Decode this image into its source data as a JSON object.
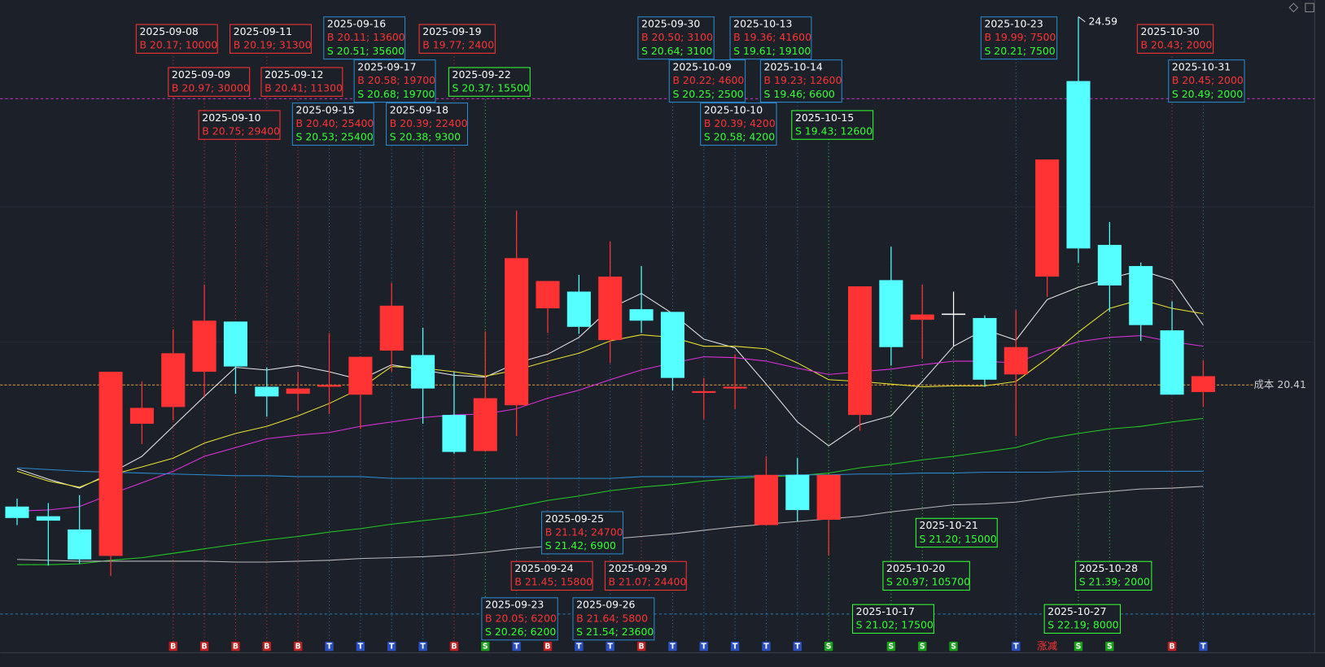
{
  "chart_data": {
    "type": "candlestick",
    "ylim": [
      17.64,
      24.78
    ],
    "candles": [
      {
        "open": 19.03,
        "high": 19.12,
        "low": 18.82,
        "close": 18.9
      },
      {
        "open": 18.92,
        "high": 19.07,
        "low": 18.36,
        "close": 18.87
      },
      {
        "open": 18.77,
        "high": 19.16,
        "low": 18.38,
        "close": 18.43
      },
      {
        "open": 18.47,
        "high": 20.56,
        "low": 18.24,
        "close": 20.56
      },
      {
        "open": 19.97,
        "high": 20.45,
        "low": 19.74,
        "close": 20.15
      },
      {
        "open": 20.16,
        "high": 21.04,
        "low": 20.01,
        "close": 20.77
      },
      {
        "open": 20.56,
        "high": 21.55,
        "low": 20.28,
        "close": 21.14
      },
      {
        "open": 21.13,
        "high": 21.13,
        "low": 20.31,
        "close": 20.62
      },
      {
        "open": 20.39,
        "high": 20.61,
        "low": 20.05,
        "close": 20.28
      },
      {
        "open": 20.31,
        "high": 20.56,
        "low": 20.12,
        "close": 20.37
      },
      {
        "open": 20.39,
        "high": 21.0,
        "low": 20.08,
        "close": 20.41
      },
      {
        "open": 20.3,
        "high": 20.73,
        "low": 19.91,
        "close": 20.73
      },
      {
        "open": 20.8,
        "high": 21.57,
        "low": 20.56,
        "close": 21.31
      },
      {
        "open": 20.75,
        "high": 21.06,
        "low": 19.97,
        "close": 20.37
      },
      {
        "open": 20.07,
        "high": 20.56,
        "low": 19.63,
        "close": 19.65
      },
      {
        "open": 19.66,
        "high": 21.02,
        "low": 19.66,
        "close": 20.26
      },
      {
        "open": 20.18,
        "high": 22.39,
        "low": 19.83,
        "close": 21.85
      },
      {
        "open": 21.28,
        "high": 21.59,
        "low": 21.0,
        "close": 21.59
      },
      {
        "open": 21.47,
        "high": 21.66,
        "low": 20.99,
        "close": 21.07
      },
      {
        "open": 20.92,
        "high": 22.04,
        "low": 20.66,
        "close": 21.64
      },
      {
        "open": 21.27,
        "high": 21.76,
        "low": 21.0,
        "close": 21.14
      },
      {
        "open": 21.24,
        "high": 21.24,
        "low": 20.35,
        "close": 20.49
      },
      {
        "open": 20.32,
        "high": 20.49,
        "low": 20.02,
        "close": 20.34
      },
      {
        "open": 20.37,
        "high": 20.76,
        "low": 20.14,
        "close": 20.39
      },
      {
        "open": 18.82,
        "high": 19.6,
        "low": 18.82,
        "close": 19.39
      },
      {
        "open": 19.39,
        "high": 19.58,
        "low": 18.86,
        "close": 18.99
      },
      {
        "open": 18.88,
        "high": 19.39,
        "low": 18.48,
        "close": 19.39
      },
      {
        "open": 20.07,
        "high": 21.53,
        "low": 19.89,
        "close": 21.53
      },
      {
        "open": 21.6,
        "high": 21.98,
        "low": 20.63,
        "close": 20.84
      },
      {
        "open": 21.15,
        "high": 21.55,
        "low": 20.71,
        "close": 21.21
      },
      {
        "open": 21.22,
        "high": 21.47,
        "low": 20.85,
        "close": 21.22
      },
      {
        "open": 21.17,
        "high": 21.2,
        "low": 20.39,
        "close": 20.47
      },
      {
        "open": 20.53,
        "high": 21.26,
        "low": 19.83,
        "close": 20.84
      },
      {
        "open": 21.64,
        "high": 22.97,
        "low": 21.41,
        "close": 22.97
      },
      {
        "open": 23.86,
        "high": 24.59,
        "low": 21.8,
        "close": 21.96
      },
      {
        "open": 22.0,
        "high": 22.26,
        "low": 21.24,
        "close": 21.54
      },
      {
        "open": 21.76,
        "high": 21.8,
        "low": 20.91,
        "close": 21.09
      },
      {
        "open": 21.03,
        "high": 21.36,
        "low": 20.3,
        "close": 20.3
      },
      {
        "open": 20.33,
        "high": 20.69,
        "low": 20.16,
        "close": 20.51
      }
    ],
    "up_color": "#ff3333",
    "down_color": "#55ffff",
    "flat_color": "#ffffff",
    "series": [
      {
        "color": "#e8e8e8",
        "values": [
          19.46,
          19.34,
          19.24,
          19.41,
          19.6,
          19.94,
          20.28,
          20.61,
          20.58,
          20.63,
          20.56,
          20.47,
          20.64,
          20.58,
          20.52,
          20.5,
          20.66,
          20.76,
          20.95,
          21.28,
          21.45,
          21.22,
          20.93,
          20.83,
          20.42,
          19.99,
          19.72,
          19.96,
          20.06,
          20.45,
          20.85,
          21.04,
          20.92,
          21.38,
          21.52,
          21.62,
          21.71,
          21.6,
          21.09
        ]
      },
      {
        "color": "#e8e030",
        "values": [
          19.43,
          19.32,
          19.25,
          19.39,
          19.48,
          19.58,
          19.75,
          19.86,
          19.94,
          20.06,
          20.2,
          20.37,
          20.62,
          20.6,
          20.56,
          20.51,
          20.58,
          20.68,
          20.77,
          20.91,
          20.98,
          20.95,
          20.85,
          20.85,
          20.82,
          20.66,
          20.47,
          20.45,
          20.42,
          20.39,
          20.4,
          20.4,
          20.45,
          20.71,
          21.01,
          21.28,
          21.38,
          21.28,
          21.22
        ]
      },
      {
        "color": "#e030e0",
        "values": [
          18.98,
          18.99,
          19.03,
          19.17,
          19.3,
          19.43,
          19.6,
          19.7,
          19.8,
          19.84,
          19.87,
          19.94,
          19.99,
          20.04,
          20.07,
          20.08,
          20.14,
          20.26,
          20.35,
          20.47,
          20.58,
          20.66,
          20.73,
          20.72,
          20.68,
          20.6,
          20.53,
          20.56,
          20.59,
          20.64,
          20.68,
          20.68,
          20.66,
          20.8,
          20.9,
          20.95,
          20.97,
          20.9,
          20.85
        ]
      },
      {
        "color": "#22cc22",
        "values": [
          18.37,
          18.37,
          18.38,
          18.42,
          18.45,
          18.5,
          18.55,
          18.6,
          18.65,
          18.69,
          18.74,
          18.78,
          18.83,
          18.87,
          18.91,
          18.96,
          19.03,
          19.1,
          19.15,
          19.21,
          19.25,
          19.28,
          19.32,
          19.35,
          19.37,
          19.38,
          19.41,
          19.47,
          19.51,
          19.56,
          19.6,
          19.65,
          19.7,
          19.8,
          19.86,
          19.91,
          19.94,
          19.99,
          20.03
        ]
      },
      {
        "color": "#b8b8b8",
        "values": [
          18.43,
          18.42,
          18.41,
          18.41,
          18.41,
          18.41,
          18.41,
          18.4,
          18.4,
          18.41,
          18.42,
          18.44,
          18.45,
          18.46,
          18.48,
          18.51,
          18.55,
          18.58,
          18.62,
          18.66,
          18.69,
          18.72,
          18.76,
          18.8,
          18.83,
          18.86,
          18.89,
          18.92,
          18.97,
          19.01,
          19.05,
          19.06,
          19.08,
          19.13,
          19.17,
          19.2,
          19.23,
          19.24,
          19.26
        ]
      },
      {
        "color": "#2a8ad0",
        "values": [
          19.47,
          19.45,
          19.43,
          19.42,
          19.41,
          19.4,
          19.39,
          19.38,
          19.38,
          19.37,
          19.37,
          19.37,
          19.35,
          19.35,
          19.35,
          19.35,
          19.35,
          19.35,
          19.35,
          19.35,
          19.37,
          19.37,
          19.37,
          19.37,
          19.38,
          19.39,
          19.39,
          19.4,
          19.4,
          19.41,
          19.41,
          19.42,
          19.42,
          19.42,
          19.43,
          19.43,
          19.43,
          19.43,
          19.43
        ]
      }
    ],
    "levels": [
      {
        "value": 23.66,
        "color": "#c030c0"
      },
      {
        "value": 17.81,
        "color": "#2a7fc0"
      }
    ],
    "cost_line": {
      "value": 20.41,
      "label": "成本 20.41",
      "color": "#e8a030"
    },
    "annotations": [
      {
        "date": "2025-09-08",
        "lines": [
          "B 20.17; 10000"
        ]
      },
      {
        "date": "2025-09-11",
        "lines": [
          "B 20.19; 31300"
        ]
      },
      {
        "date": "2025-09-16",
        "lines": [
          "B 20.11; 13600",
          "S 20.51; 35600"
        ]
      },
      {
        "date": "2025-09-19",
        "lines": [
          "B 19.77; 2400"
        ]
      },
      {
        "date": "2025-09-09",
        "lines": [
          "B 20.97; 30000"
        ]
      },
      {
        "date": "2025-09-12",
        "lines": [
          "B 20.41; 11300"
        ]
      },
      {
        "date": "2025-09-17",
        "lines": [
          "B 20.58; 19700",
          "S 20.68; 19700"
        ]
      },
      {
        "date": "2025-09-22",
        "lines": [
          "S 20.37; 15500"
        ]
      },
      {
        "date": "2025-09-10",
        "lines": [
          "B 20.75; 29400"
        ]
      },
      {
        "date": "2025-09-15",
        "lines": [
          "B 20.40; 25400",
          "S 20.53; 25400"
        ]
      },
      {
        "date": "2025-09-18",
        "lines": [
          "B 20.39; 22400",
          "S 20.38; 9300"
        ]
      },
      {
        "date": "2025-09-30",
        "lines": [
          "B 20.50; 3100",
          "S 20.64; 3100"
        ]
      },
      {
        "date": "2025-10-13",
        "lines": [
          "B 19.36; 41600",
          "S 19.61; 19100"
        ]
      },
      {
        "date": "2025-10-09",
        "lines": [
          "B 20.22; 4600",
          "S 20.25; 2500"
        ]
      },
      {
        "date": "2025-10-14",
        "lines": [
          "B 19.23; 12600",
          "S 19.46; 6600"
        ]
      },
      {
        "date": "2025-10-10",
        "lines": [
          "B 20.39; 4200",
          "S 20.58; 4200"
        ]
      },
      {
        "date": "2025-10-15",
        "lines": [
          "S 19.43; 12600"
        ]
      },
      {
        "date": "2025-10-23",
        "lines": [
          "B 19.99; 7500",
          "S 20.21; 7500"
        ]
      },
      {
        "date": "2025-10-30",
        "lines": [
          "B 20.43; 2000"
        ]
      },
      {
        "date": "2025-10-31",
        "lines": [
          "B 20.45; 2000",
          "S 20.49; 2000"
        ]
      },
      {
        "date": "2025-09-25",
        "lines": [
          "B 21.14; 24700",
          "S 21.42; 6900"
        ]
      },
      {
        "date": "2025-09-24",
        "lines": [
          "B 21.45; 15800"
        ]
      },
      {
        "date": "2025-09-29",
        "lines": [
          "B 21.07; 24400"
        ]
      },
      {
        "date": "2025-09-23",
        "lines": [
          "B 20.05; 6200",
          "S 20.26; 6200"
        ]
      },
      {
        "date": "2025-09-26",
        "lines": [
          "B 21.64; 5800",
          "S 21.54; 23600"
        ]
      },
      {
        "date": "2025-10-21",
        "lines": [
          "S 21.20; 15000"
        ]
      },
      {
        "date": "2025-10-20",
        "lines": [
          "S 20.97; 105700"
        ]
      },
      {
        "date": "2025-10-17",
        "lines": [
          "S 21.02; 17500"
        ]
      },
      {
        "date": "2025-10-28",
        "lines": [
          "S 21.39; 2000"
        ]
      },
      {
        "date": "2025-10-27",
        "lines": [
          "S 22.19; 8000"
        ]
      }
    ],
    "markers": [
      null,
      null,
      null,
      null,
      null,
      "B",
      "B",
      "B",
      "B",
      "B",
      "T",
      "T",
      "T",
      "T",
      "B",
      "S",
      "T",
      "B",
      "T",
      "T",
      "B",
      "T",
      "T",
      "T",
      "T",
      "T",
      "S",
      null,
      "S",
      "S",
      "S",
      null,
      "T",
      "涨减",
      "S",
      "S",
      null,
      "B",
      "T"
    ]
  }
}
